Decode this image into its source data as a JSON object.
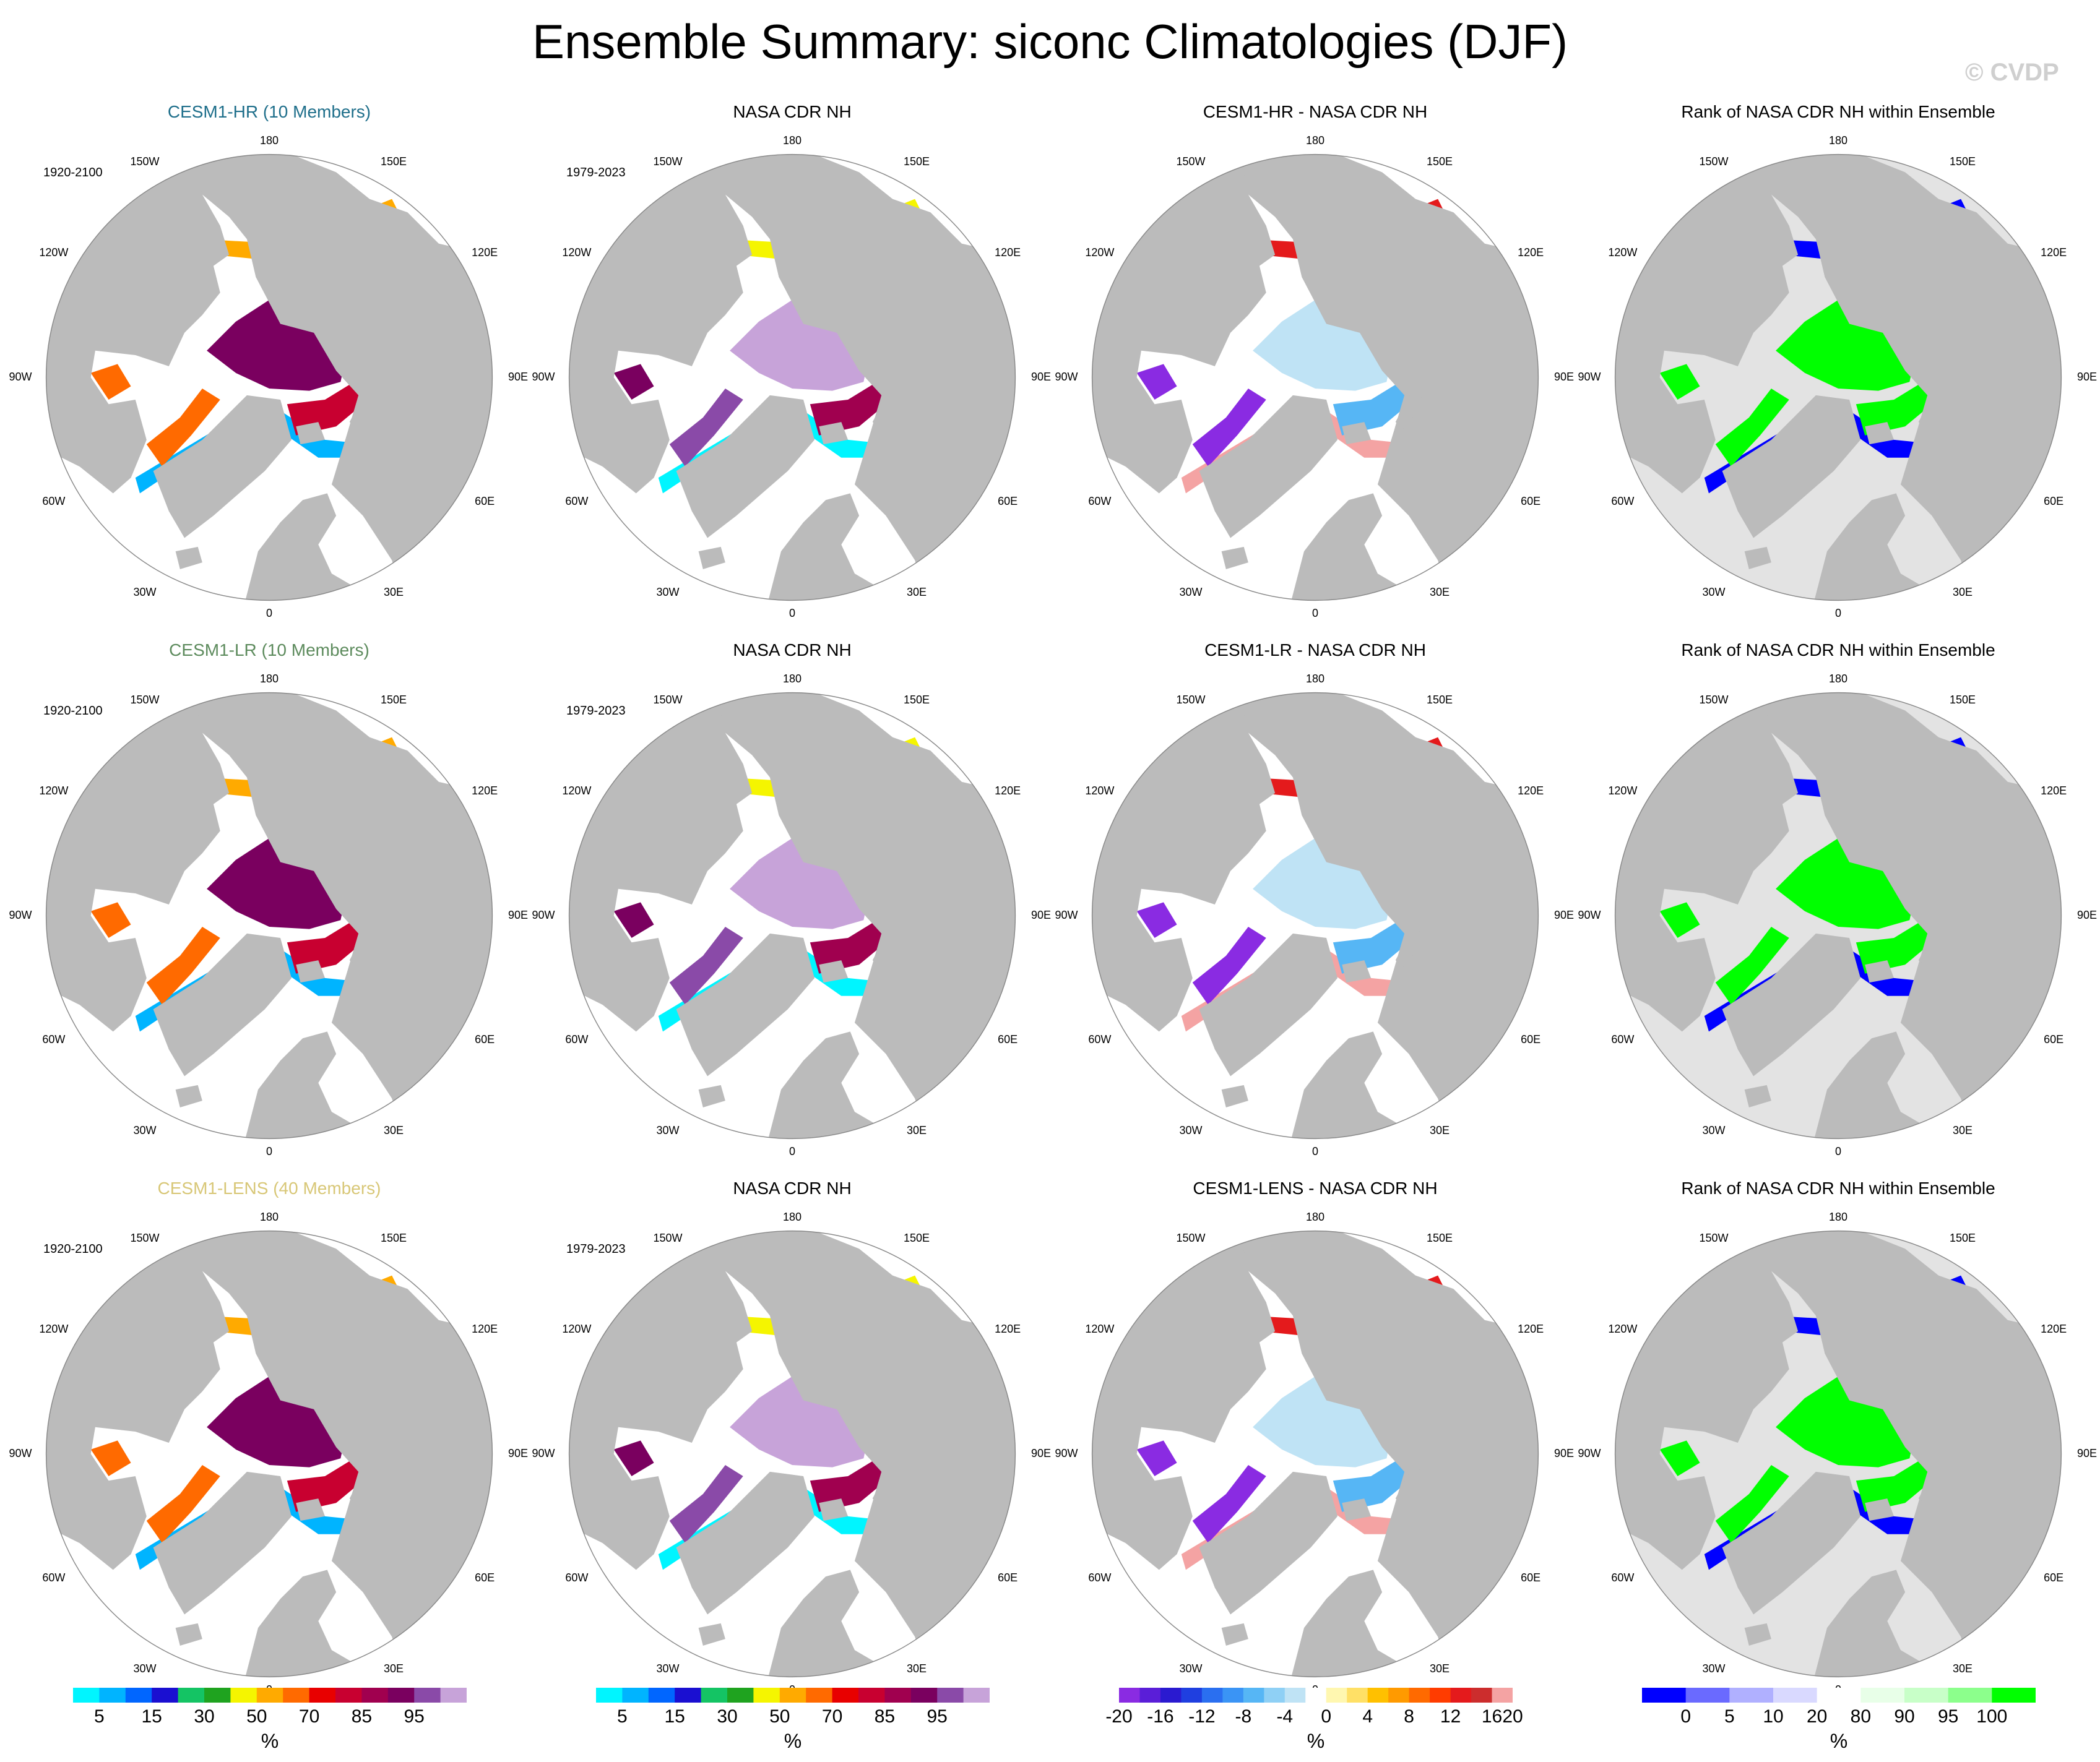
{
  "title": "Ensemble Summary: siconc Climatologies (DJF)",
  "watermark": "© CVDP",
  "colors": {
    "land": "#bbbbbb",
    "ocean": "#ffffff",
    "rank_background": "#e3e3e3",
    "cesm1_hr": "#1f6f8b",
    "cesm1_lr": "#5d8b5d",
    "cesm1_lens": "#d8c777"
  },
  "lon_labels": [
    "180",
    "150E",
    "120E",
    "90E",
    "60E",
    "30E",
    "0",
    "30W",
    "60W",
    "90W",
    "120W",
    "150W"
  ],
  "rows": [
    {
      "model": "CESM1-HR (10 Members)",
      "model_color": "#1f6f8b",
      "model_period": "1920-2100",
      "obs_title": "NASA CDR NH",
      "obs_period": "1979-2023",
      "diff_title": "CESM1-HR - NASA CDR NH",
      "rank_title": "Rank of NASA CDR NH within Ensemble"
    },
    {
      "model": "CESM1-LR (10 Members)",
      "model_color": "#5d8b5d",
      "model_period": "1920-2100",
      "obs_title": "NASA CDR NH",
      "obs_period": "1979-2023",
      "diff_title": "CESM1-LR - NASA CDR NH",
      "rank_title": "Rank of NASA CDR NH within Ensemble"
    },
    {
      "model": "CESM1-LENS (40 Members)",
      "model_color": "#d8c777",
      "model_period": "1920-2100",
      "obs_title": "NASA CDR NH",
      "obs_period": "1979-2023",
      "diff_title": "CESM1-LENS - NASA CDR NH",
      "rank_title": "Rank of NASA CDR NH within Ensemble"
    }
  ],
  "colorbars": [
    {
      "name": "siconc-model",
      "colors": [
        "#00f5ff",
        "#00b4ff",
        "#0066ff",
        "#1a0fd1",
        "#14c464",
        "#1fa31f",
        "#f5f500",
        "#ffaa00",
        "#ff6a00",
        "#e80000",
        "#c80030",
        "#a0004f",
        "#7a005f",
        "#8a4aa8",
        "#c7a3d9"
      ],
      "labels": [
        "5",
        "15",
        "30",
        "50",
        "70",
        "85",
        "95"
      ],
      "label_slots": [
        1,
        3,
        5,
        7,
        9,
        11,
        13
      ],
      "unit": "%"
    },
    {
      "name": "siconc-obs",
      "colors": [
        "#00f5ff",
        "#00b4ff",
        "#0066ff",
        "#1a0fd1",
        "#14c464",
        "#1fa31f",
        "#f5f500",
        "#ffaa00",
        "#ff6a00",
        "#e80000",
        "#c80030",
        "#a0004f",
        "#7a005f",
        "#8a4aa8",
        "#c7a3d9"
      ],
      "labels": [
        "5",
        "15",
        "30",
        "50",
        "70",
        "85",
        "95"
      ],
      "label_slots": [
        1,
        3,
        5,
        7,
        9,
        11,
        13
      ],
      "unit": "%"
    },
    {
      "name": "difference",
      "colors": [
        "#8a2be2",
        "#5a1ed8",
        "#2a1ad0",
        "#1f3fe0",
        "#2a6ff0",
        "#3a94f5",
        "#56b6f5",
        "#8fd0f5",
        "#bfe3f5",
        "#ffffff",
        "#fff7b0",
        "#ffe066",
        "#ffc000",
        "#ff9a00",
        "#ff6a00",
        "#ff3c00",
        "#e41a1c",
        "#cc2d2d",
        "#f4a3a3"
      ],
      "labels": [
        "-20",
        "-16",
        "-12",
        "-8",
        "-4",
        "0",
        "4",
        "8",
        "12",
        "16",
        "20"
      ],
      "label_slots": [
        0,
        2,
        4,
        6,
        8,
        10,
        12,
        14,
        16,
        18,
        19
      ],
      "unit": "%"
    },
    {
      "name": "rank",
      "colors": [
        "#0000ff",
        "#6a6aff",
        "#b0b0ff",
        "#d9d9ff",
        "#ffffff",
        "#e8ffe8",
        "#c8ffc8",
        "#8cff8c",
        "#00ff00"
      ],
      "labels": [
        "0",
        "5",
        "10",
        "20",
        "80",
        "90",
        "95",
        "100"
      ],
      "label_slots": [
        1,
        2,
        3,
        4,
        5,
        6,
        7,
        8
      ],
      "unit": "%"
    }
  ]
}
